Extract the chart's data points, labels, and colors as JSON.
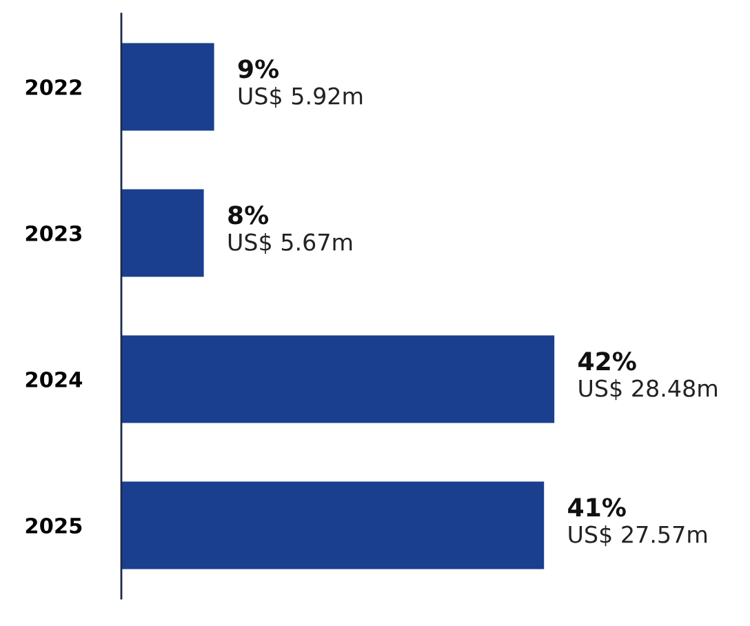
{
  "chart_data": {
    "type": "bar",
    "orientation": "horizontal",
    "categories": [
      "2022",
      "2023",
      "2024",
      "2025"
    ],
    "values": [
      9,
      8,
      42,
      41
    ],
    "color": "#1b3f8f",
    "value_labels": [
      "9%\nUS$ 5.92m",
      "8%\nUS$ 5.67m",
      "42%\nUS$ 28.48m",
      "41%\nUS$ 27.57m"
    ],
    "grid": false,
    "legend": false
  }
}
